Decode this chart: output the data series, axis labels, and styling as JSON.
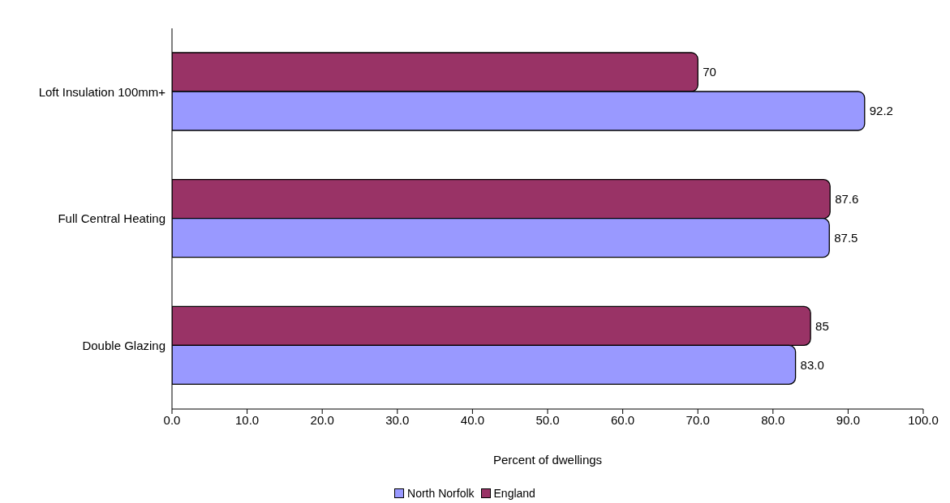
{
  "chart_data": {
    "type": "bar",
    "orientation": "horizontal",
    "categories": [
      "Loft Insulation 100mm+",
      "Full Central Heating",
      "Double Glazing"
    ],
    "series": [
      {
        "name": "North Norfolk",
        "color": "#9999ff",
        "values": [
          92.2,
          87.5,
          83.0
        ],
        "value_labels": [
          "92.2",
          "87.5",
          "83.0"
        ]
      },
      {
        "name": "England",
        "color": "#993366",
        "values": [
          70,
          87.6,
          85
        ],
        "value_labels": [
          "70",
          "87.6",
          "85"
        ]
      }
    ],
    "xlabel": "Percent of dwellings",
    "xlim": [
      0,
      100
    ],
    "xticks": [
      {
        "value": 0,
        "label": "0.0"
      },
      {
        "value": 10,
        "label": "10.0"
      },
      {
        "value": 20,
        "label": "20.0"
      },
      {
        "value": 30,
        "label": "30.0"
      },
      {
        "value": 40,
        "label": "40.0"
      },
      {
        "value": 50,
        "label": "50.0"
      },
      {
        "value": 60,
        "label": "60.0"
      },
      {
        "value": 70,
        "label": "70.0"
      },
      {
        "value": 80,
        "label": "80.0"
      },
      {
        "value": 90,
        "label": "90.0"
      },
      {
        "value": 100,
        "label": "100.0"
      }
    ],
    "legend": "bottom"
  }
}
